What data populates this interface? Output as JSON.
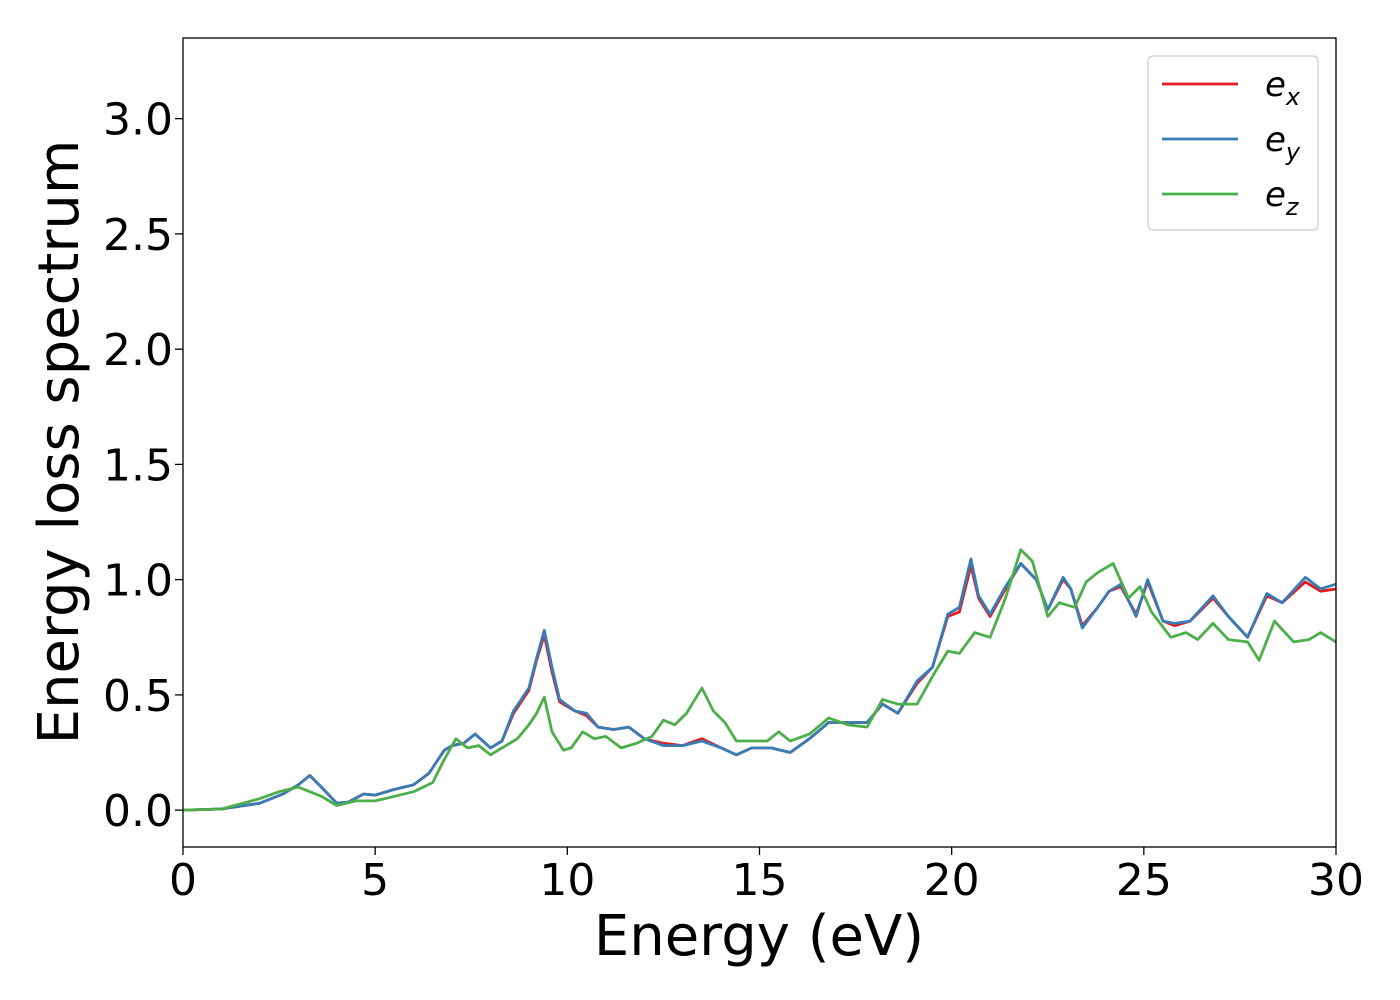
{
  "chart_data": {
    "type": "line",
    "title": "",
    "xlabel": "Energy (eV)",
    "ylabel": "Energy loss spectrum",
    "xlim": [
      0,
      30
    ],
    "ylim": [
      -0.16,
      3.35
    ],
    "grid": false,
    "legend_position": "top-right",
    "x_ticks": [
      "0",
      "5",
      "10",
      "15",
      "20",
      "25",
      "30"
    ],
    "y_ticks": [
      "0.0",
      "0.5",
      "1.0",
      "1.5",
      "2.0",
      "2.5",
      "3.0"
    ],
    "series": [
      {
        "name": "e_x",
        "legend_base": "e",
        "legend_sub": "x",
        "color": "#e41a1c",
        "points": [
          [
            0,
            0
          ],
          [
            1,
            0.005
          ],
          [
            2,
            0.03
          ],
          [
            2.6,
            0.07
          ],
          [
            3,
            0.11
          ],
          [
            3.3,
            0.15
          ],
          [
            3.6,
            0.1
          ],
          [
            4,
            0.03
          ],
          [
            4.3,
            0.035
          ],
          [
            4.7,
            0.07
          ],
          [
            5,
            0.065
          ],
          [
            5.5,
            0.09
          ],
          [
            6,
            0.11
          ],
          [
            6.4,
            0.16
          ],
          [
            6.8,
            0.26
          ],
          [
            7,
            0.28
          ],
          [
            7.3,
            0.29
          ],
          [
            7.6,
            0.33
          ],
          [
            8,
            0.27
          ],
          [
            8.3,
            0.3
          ],
          [
            8.6,
            0.42
          ],
          [
            9,
            0.52
          ],
          [
            9.2,
            0.65
          ],
          [
            9.4,
            0.76
          ],
          [
            9.6,
            0.6
          ],
          [
            9.8,
            0.47
          ],
          [
            10.2,
            0.43
          ],
          [
            10.5,
            0.41
          ],
          [
            10.8,
            0.36
          ],
          [
            11.2,
            0.35
          ],
          [
            11.6,
            0.36
          ],
          [
            12,
            0.31
          ],
          [
            12.5,
            0.29
          ],
          [
            13,
            0.28
          ],
          [
            13.5,
            0.31
          ],
          [
            14,
            0.27
          ],
          [
            14.4,
            0.24
          ],
          [
            14.8,
            0.27
          ],
          [
            15.3,
            0.27
          ],
          [
            15.8,
            0.25
          ],
          [
            16.3,
            0.31
          ],
          [
            16.8,
            0.38
          ],
          [
            17.3,
            0.38
          ],
          [
            17.8,
            0.38
          ],
          [
            18.2,
            0.46
          ],
          [
            18.6,
            0.42
          ],
          [
            19.1,
            0.55
          ],
          [
            19.5,
            0.62
          ],
          [
            19.9,
            0.84
          ],
          [
            20.2,
            0.86
          ],
          [
            20.5,
            1.06
          ],
          [
            20.7,
            0.92
          ],
          [
            21,
            0.84
          ],
          [
            21.4,
            0.96
          ],
          [
            21.8,
            1.07
          ],
          [
            22.2,
            1.0
          ],
          [
            22.5,
            0.87
          ],
          [
            22.9,
            1.0
          ],
          [
            23.1,
            0.96
          ],
          [
            23.4,
            0.8
          ],
          [
            23.8,
            0.88
          ],
          [
            24.1,
            0.95
          ],
          [
            24.4,
            0.97
          ],
          [
            24.8,
            0.85
          ],
          [
            25.1,
            0.99
          ],
          [
            25.5,
            0.82
          ],
          [
            25.8,
            0.8
          ],
          [
            26.2,
            0.82
          ],
          [
            26.8,
            0.92
          ],
          [
            27.2,
            0.84
          ],
          [
            27.7,
            0.75
          ],
          [
            28.2,
            0.93
          ],
          [
            28.6,
            0.9
          ],
          [
            29.2,
            0.99
          ],
          [
            29.6,
            0.95
          ],
          [
            30,
            0.96
          ]
        ]
      },
      {
        "name": "e_y",
        "legend_base": "e",
        "legend_sub": "y",
        "color": "#377eb8",
        "points": [
          [
            0,
            0
          ],
          [
            1,
            0.005
          ],
          [
            2,
            0.03
          ],
          [
            2.6,
            0.07
          ],
          [
            3,
            0.11
          ],
          [
            3.3,
            0.15
          ],
          [
            3.6,
            0.1
          ],
          [
            4,
            0.03
          ],
          [
            4.3,
            0.035
          ],
          [
            4.7,
            0.07
          ],
          [
            5,
            0.065
          ],
          [
            5.5,
            0.09
          ],
          [
            6,
            0.11
          ],
          [
            6.4,
            0.16
          ],
          [
            6.8,
            0.26
          ],
          [
            7,
            0.28
          ],
          [
            7.3,
            0.29
          ],
          [
            7.6,
            0.33
          ],
          [
            8,
            0.27
          ],
          [
            8.3,
            0.3
          ],
          [
            8.6,
            0.43
          ],
          [
            9,
            0.53
          ],
          [
            9.2,
            0.66
          ],
          [
            9.4,
            0.78
          ],
          [
            9.6,
            0.62
          ],
          [
            9.8,
            0.48
          ],
          [
            10.2,
            0.43
          ],
          [
            10.5,
            0.42
          ],
          [
            10.8,
            0.36
          ],
          [
            11.2,
            0.35
          ],
          [
            11.6,
            0.36
          ],
          [
            12,
            0.31
          ],
          [
            12.5,
            0.28
          ],
          [
            13,
            0.28
          ],
          [
            13.5,
            0.3
          ],
          [
            14,
            0.27
          ],
          [
            14.4,
            0.24
          ],
          [
            14.8,
            0.27
          ],
          [
            15.3,
            0.27
          ],
          [
            15.8,
            0.25
          ],
          [
            16.3,
            0.31
          ],
          [
            16.8,
            0.38
          ],
          [
            17.3,
            0.38
          ],
          [
            17.8,
            0.38
          ],
          [
            18.2,
            0.46
          ],
          [
            18.6,
            0.42
          ],
          [
            19.1,
            0.56
          ],
          [
            19.5,
            0.62
          ],
          [
            19.9,
            0.85
          ],
          [
            20.2,
            0.88
          ],
          [
            20.5,
            1.09
          ],
          [
            20.7,
            0.93
          ],
          [
            21,
            0.85
          ],
          [
            21.4,
            0.97
          ],
          [
            21.8,
            1.07
          ],
          [
            22.2,
            1.0
          ],
          [
            22.5,
            0.87
          ],
          [
            22.9,
            1.01
          ],
          [
            23.1,
            0.96
          ],
          [
            23.4,
            0.79
          ],
          [
            23.8,
            0.88
          ],
          [
            24.1,
            0.95
          ],
          [
            24.4,
            0.98
          ],
          [
            24.8,
            0.84
          ],
          [
            25.1,
            1.0
          ],
          [
            25.5,
            0.82
          ],
          [
            25.8,
            0.81
          ],
          [
            26.2,
            0.82
          ],
          [
            26.8,
            0.93
          ],
          [
            27.2,
            0.84
          ],
          [
            27.7,
            0.75
          ],
          [
            28.2,
            0.94
          ],
          [
            28.6,
            0.9
          ],
          [
            29.2,
            1.01
          ],
          [
            29.6,
            0.96
          ],
          [
            30,
            0.98
          ]
        ]
      },
      {
        "name": "e_z",
        "legend_base": "e",
        "legend_sub": "z",
        "color": "#4daf4a",
        "points": [
          [
            0,
            0
          ],
          [
            1,
            0.005
          ],
          [
            2,
            0.05
          ],
          [
            2.5,
            0.08
          ],
          [
            3,
            0.1
          ],
          [
            3.3,
            0.08
          ],
          [
            3.6,
            0.06
          ],
          [
            4,
            0.02
          ],
          [
            4.5,
            0.04
          ],
          [
            5,
            0.04
          ],
          [
            5.5,
            0.06
          ],
          [
            6,
            0.08
          ],
          [
            6.5,
            0.12
          ],
          [
            6.8,
            0.22
          ],
          [
            7.1,
            0.31
          ],
          [
            7.4,
            0.27
          ],
          [
            7.7,
            0.28
          ],
          [
            8,
            0.24
          ],
          [
            8.3,
            0.27
          ],
          [
            8.7,
            0.31
          ],
          [
            9,
            0.37
          ],
          [
            9.2,
            0.42
          ],
          [
            9.4,
            0.49
          ],
          [
            9.6,
            0.34
          ],
          [
            9.9,
            0.26
          ],
          [
            10.1,
            0.27
          ],
          [
            10.4,
            0.34
          ],
          [
            10.7,
            0.31
          ],
          [
            11,
            0.32
          ],
          [
            11.4,
            0.27
          ],
          [
            11.8,
            0.29
          ],
          [
            12.2,
            0.32
          ],
          [
            12.5,
            0.39
          ],
          [
            12.8,
            0.37
          ],
          [
            13.1,
            0.42
          ],
          [
            13.5,
            0.53
          ],
          [
            13.8,
            0.43
          ],
          [
            14.1,
            0.38
          ],
          [
            14.4,
            0.3
          ],
          [
            14.8,
            0.3
          ],
          [
            15.2,
            0.3
          ],
          [
            15.5,
            0.34
          ],
          [
            15.8,
            0.3
          ],
          [
            16.3,
            0.33
          ],
          [
            16.8,
            0.4
          ],
          [
            17.3,
            0.37
          ],
          [
            17.8,
            0.36
          ],
          [
            18.2,
            0.48
          ],
          [
            18.6,
            0.46
          ],
          [
            19.1,
            0.46
          ],
          [
            19.5,
            0.58
          ],
          [
            19.9,
            0.69
          ],
          [
            20.2,
            0.68
          ],
          [
            20.6,
            0.77
          ],
          [
            21,
            0.75
          ],
          [
            21.4,
            0.92
          ],
          [
            21.8,
            1.13
          ],
          [
            22.1,
            1.08
          ],
          [
            22.5,
            0.84
          ],
          [
            22.8,
            0.9
          ],
          [
            23.2,
            0.88
          ],
          [
            23.5,
            0.99
          ],
          [
            23.8,
            1.03
          ],
          [
            24,
            1.05
          ],
          [
            24.2,
            1.07
          ],
          [
            24.6,
            0.92
          ],
          [
            24.9,
            0.97
          ],
          [
            25.2,
            0.86
          ],
          [
            25.7,
            0.75
          ],
          [
            26.1,
            0.77
          ],
          [
            26.4,
            0.74
          ],
          [
            26.8,
            0.81
          ],
          [
            27.2,
            0.74
          ],
          [
            27.7,
            0.73
          ],
          [
            28,
            0.65
          ],
          [
            28.4,
            0.82
          ],
          [
            28.9,
            0.73
          ],
          [
            29.3,
            0.74
          ],
          [
            29.6,
            0.77
          ],
          [
            30,
            0.73
          ]
        ]
      }
    ]
  }
}
